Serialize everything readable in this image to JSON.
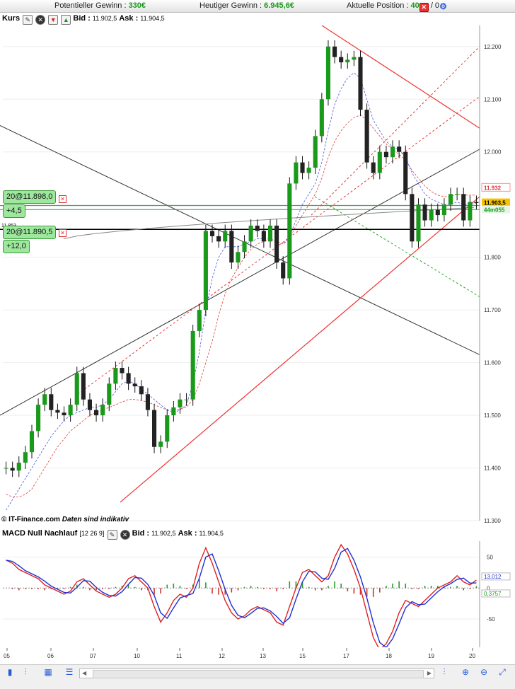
{
  "header": {
    "potential_label": "Potentieller Gewinn :",
    "potential_value": "330€",
    "today_label": "Heutiger Gewinn :",
    "today_value": "6.945,6€",
    "position_label": "Aktuelle Position :",
    "position_value": "40",
    "position_sep": "/ 0"
  },
  "price_panel": {
    "title": "Kurs",
    "bid_label": "Bid :",
    "bid_value": "11.902,5",
    "ask_label": "Ask :",
    "ask_value": "11.904,5",
    "marker_label": "11.853"
  },
  "orders": [
    {
      "label": "20@11.898,0",
      "pl": "+4,5",
      "price": 11898
    },
    {
      "label": "20@11.890,5",
      "pl": "+12,0",
      "price": 11890.5
    }
  ],
  "macd_panel": {
    "title": "MACD Null Nachlauf",
    "params": "[12 26 9]",
    "bid_label": "Bid :",
    "bid_value": "11.902,5",
    "ask_label": "Ask :",
    "ask_value": "11.904,5",
    "value_macd": "13,012",
    "value_hist": "0,3757"
  },
  "credit": {
    "brand": "© IT-Finance.com",
    "note": "Daten sind indikativ"
  },
  "colors": {
    "up": "#1a9a1a",
    "down": "#222222",
    "trend_red": "#ee3333",
    "trend_black": "#333333"
  },
  "chart_data": [
    {
      "type": "candlestick",
      "ylim": [
        11300,
        12240
      ],
      "x_ticks": [
        "05",
        "06",
        "07",
        "10",
        "11",
        "12",
        "13",
        "15",
        "17",
        "18",
        "19",
        "20"
      ],
      "y_ticks": [
        "12.200",
        "12.100",
        "12.000",
        "11.900",
        "11.800",
        "11.700",
        "11.600",
        "11.500",
        "11.400",
        "11.300"
      ],
      "right_labels": [
        {
          "text": "11.932",
          "value": 11932,
          "style": "red"
        },
        {
          "text": "11.903,5",
          "value": 11903.5,
          "style": "gold"
        },
        {
          "text": "44m055",
          "value": 11890,
          "style": "green"
        }
      ],
      "close": [
        11400,
        11395,
        11410,
        11430,
        11470,
        11520,
        11540,
        11510,
        11505,
        11500,
        11520,
        11580,
        11530,
        11510,
        11500,
        11520,
        11560,
        11590,
        11580,
        11560,
        11555,
        11540,
        11510,
        11440,
        11450,
        11500,
        11515,
        11530,
        11530,
        11660,
        11700,
        11850,
        11840,
        11830,
        11850,
        11790,
        11810,
        11830,
        11860,
        11850,
        11830,
        11860,
        11790,
        11760,
        11940,
        11980,
        11960,
        11970,
        12030,
        12100,
        12200,
        12180,
        12170,
        12175,
        12180,
        12080,
        11980,
        11960,
        12000,
        11990,
        12010,
        12000,
        11920,
        11830,
        11900,
        11870,
        11890,
        11880,
        11900,
        11920,
        11920,
        11870,
        11905,
        11903
      ],
      "sma_blue": [
        11320,
        11340,
        11360,
        11380,
        11400,
        11420,
        11440,
        11460,
        11475,
        11490,
        11500,
        11505,
        11510,
        11515,
        11515,
        11520,
        11530,
        11545,
        11560,
        11565,
        11560,
        11550,
        11540,
        11530,
        11520,
        11510,
        11505,
        11510,
        11520,
        11560,
        11620,
        11700,
        11760,
        11800,
        11820,
        11820,
        11820,
        11825,
        11830,
        11835,
        11835,
        11835,
        11830,
        11825,
        11840,
        11870,
        11900,
        11920,
        11940,
        11980,
        12040,
        12090,
        12120,
        12140,
        12150,
        12140,
        12100,
        12060,
        12040,
        12020,
        12010,
        12005,
        11990,
        11960,
        11940,
        11920,
        11910,
        11905,
        11900,
        11900,
        11905,
        11900,
        11900,
        11903
      ],
      "sma_red": [
        11350,
        11345,
        11345,
        11350,
        11360,
        11380,
        11400,
        11420,
        11440,
        11455,
        11470,
        11480,
        11490,
        11500,
        11505,
        11510,
        11515,
        11520,
        11525,
        11530,
        11530,
        11528,
        11525,
        11520,
        11515,
        11510,
        11510,
        11512,
        11515,
        11530,
        11560,
        11600,
        11640,
        11690,
        11730,
        11760,
        11780,
        11800,
        11815,
        11825,
        11830,
        11835,
        11830,
        11825,
        11835,
        11860,
        11880,
        11900,
        11920,
        11950,
        11990,
        12020,
        12040,
        12055,
        12065,
        12070,
        12060,
        12045,
        12030,
        12015,
        12005,
        11995,
        11985,
        11965,
        11950,
        11935,
        11925,
        11918,
        11915,
        11915,
        11920,
        11918,
        11918,
        11918
      ],
      "macd": [
        45,
        40,
        30,
        25,
        20,
        15,
        5,
        0,
        -5,
        -10,
        -5,
        10,
        15,
        5,
        -5,
        -10,
        -15,
        -10,
        0,
        15,
        20,
        10,
        0,
        -30,
        -55,
        -40,
        -20,
        -10,
        -15,
        0,
        40,
        65,
        40,
        10,
        -20,
        -40,
        -50,
        -45,
        -35,
        -30,
        -35,
        -40,
        -55,
        -60,
        -30,
        0,
        25,
        30,
        20,
        10,
        20,
        50,
        70,
        55,
        30,
        0,
        -40,
        -80,
        -100,
        -90,
        -70,
        -40,
        -20,
        -25,
        -30,
        -20,
        -10,
        0,
        5,
        10,
        20,
        10,
        5,
        13
      ]
    }
  ]
}
